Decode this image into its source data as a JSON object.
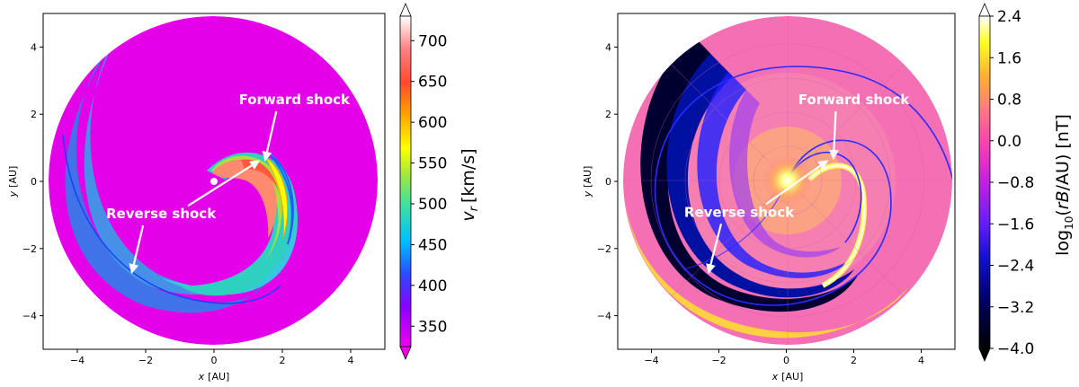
{
  "chart_data": [
    {
      "type": "heatmap",
      "title": "",
      "xlabel": "x [AU]",
      "ylabel": "y [AU]",
      "xlim": [
        -5,
        5
      ],
      "ylim": [
        -5,
        5
      ],
      "xticks": [
        -4,
        -2,
        0,
        2,
        4
      ],
      "yticks": [
        -4,
        -2,
        0,
        2,
        4
      ],
      "colorbar": {
        "label": "v_r [km/s]",
        "ticks": [
          350,
          400,
          450,
          500,
          550,
          600,
          650,
          700
        ],
        "range": [
          325,
          730
        ],
        "colormap": [
          "#ee00ee",
          "#2a4cff",
          "#00bfff",
          "#40e0a0",
          "#ffff00",
          "#ff8000",
          "#ff3c3c",
          "#ffffff"
        ],
        "extend": "both"
      },
      "domain_radius": 4.9,
      "background_value": 325,
      "annotations": [
        {
          "text": "Forward shock",
          "text_at": [
            2.35,
            2.3
          ],
          "arrow_to": [
            1.5,
            0.65
          ]
        },
        {
          "text": "Reverse shock",
          "text_at": [
            -1.55,
            -1.1
          ],
          "arrow_to": [
            -2.4,
            -2.7
          ],
          "arrow2_to": [
            1.3,
            0.6
          ]
        }
      ],
      "marker": {
        "x": 0,
        "y": 0,
        "color": "#ffffff"
      }
    },
    {
      "type": "heatmap",
      "title": "",
      "xlabel": "x [AU]",
      "ylabel": "y [AU]",
      "xlim": [
        -5,
        5
      ],
      "ylim": [
        -5,
        5
      ],
      "xticks": [
        -4,
        -2,
        0,
        2,
        4
      ],
      "yticks": [
        -4,
        -2,
        0,
        2,
        4
      ],
      "colorbar": {
        "label": "log10(rB/AU) [nT]",
        "label_parts": {
          "base": "log",
          "sub": "10",
          "rest": "(rB/AU) [nT]"
        },
        "ticks": [
          -4.0,
          -3.2,
          -2.4,
          -1.6,
          -0.8,
          0.0,
          0.8,
          1.6,
          2.4
        ],
        "tick_labels": [
          "−4.0",
          "−3.2",
          "−2.4",
          "−1.6",
          "−0.8",
          "0.0",
          "0.8",
          "1.6",
          "2.4"
        ],
        "range": [
          -4.0,
          2.4
        ],
        "colormap": [
          "#000000",
          "#000070",
          "#2828ff",
          "#a020f0",
          "#ff1dc8",
          "#ff6f9a",
          "#ffb040",
          "#ffff00",
          "#ffffff"
        ],
        "extend": "both"
      },
      "domain_radius": 4.9,
      "annotations": [
        {
          "text": "Forward shock",
          "text_at": [
            2.0,
            2.3
          ],
          "arrow_to": [
            1.4,
            0.7
          ]
        },
        {
          "text": "Reverse shock",
          "text_at": [
            -1.4,
            -1.05
          ],
          "arrow_to": [
            -2.3,
            -2.7
          ],
          "arrow2_to": [
            1.2,
            0.6
          ]
        }
      ]
    }
  ]
}
